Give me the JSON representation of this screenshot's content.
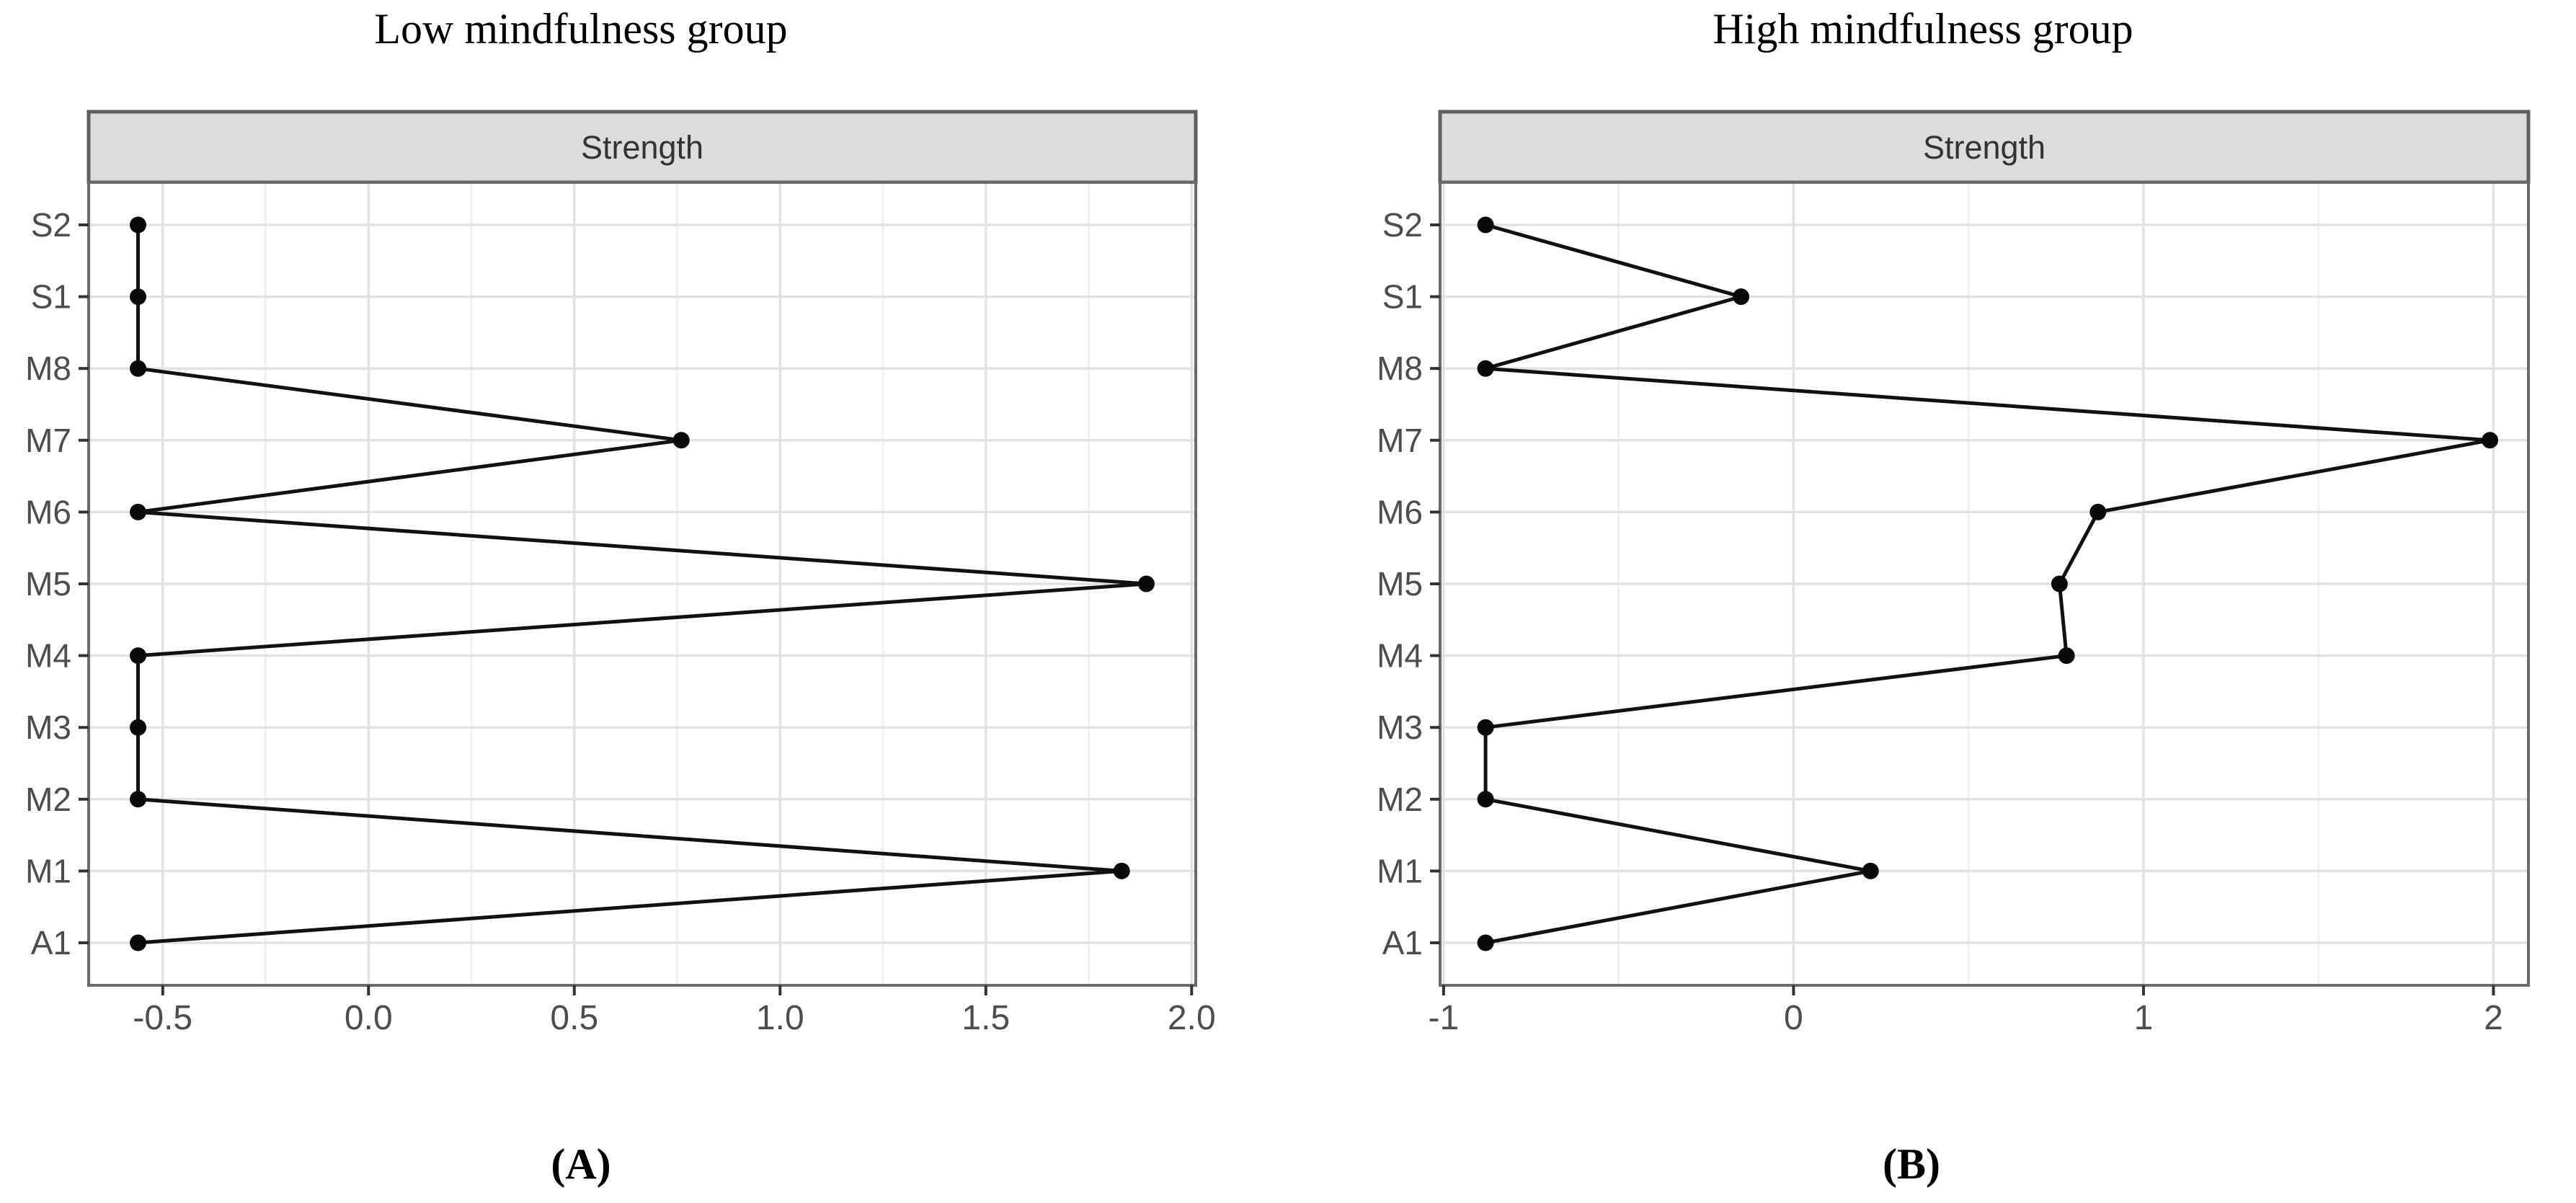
{
  "page": {
    "background": "#ffffff"
  },
  "colors": {
    "strip_fill": "#dcdcdc",
    "strip_border": "#5f5f5f",
    "panel_fill": "#ffffff",
    "panel_border": "#6a6a6a",
    "grid_major": "#e2e2e2",
    "grid_minor": "#f0f0f0",
    "axis_text": "#4d4d4d",
    "strip_text": "#333333",
    "tick_mark": "#333333",
    "data_line": "#111111",
    "data_point": "#0a0a0a"
  },
  "chart_data": [
    {
      "id": "A",
      "type": "line",
      "orientation": "horizontal-categorical",
      "title": "Low mindfulness group",
      "caption": "(A)",
      "facet_label": "Strength",
      "xlabel": "",
      "ylabel": "",
      "legend": "none",
      "grid": true,
      "categories_top_to_bottom": [
        "S2",
        "S1",
        "M8",
        "M7",
        "M6",
        "M5",
        "M4",
        "M3",
        "M2",
        "M1",
        "A1"
      ],
      "values": [
        -0.56,
        -0.56,
        -0.56,
        0.76,
        -0.56,
        1.89,
        -0.56,
        -0.56,
        -0.56,
        1.83,
        -0.56
      ],
      "x_domain": [
        -0.68,
        2.01
      ],
      "x_ticks": [
        -0.5,
        0,
        0.5,
        1,
        1.5,
        2
      ],
      "x_tick_labels": [
        "-0.5",
        "0.0",
        "0.5",
        "1.0",
        "1.5",
        "2.0"
      ],
      "x_minor_ticks": [
        -0.25,
        0.25,
        0.75,
        1.25,
        1.75
      ]
    },
    {
      "id": "B",
      "type": "line",
      "orientation": "horizontal-categorical",
      "title": "High mindfulness group",
      "caption": "(B)",
      "facet_label": "Strength",
      "xlabel": "",
      "ylabel": "",
      "legend": "none",
      "grid": true,
      "categories_top_to_bottom": [
        "S2",
        "S1",
        "M8",
        "M7",
        "M6",
        "M5",
        "M4",
        "M3",
        "M2",
        "M1",
        "A1"
      ],
      "values": [
        -0.88,
        -0.15,
        -0.88,
        1.99,
        0.87,
        0.76,
        0.78,
        -0.88,
        -0.88,
        0.22,
        -0.88
      ],
      "x_domain": [
        -1.01,
        2.1
      ],
      "x_ticks": [
        -1,
        0,
        1,
        2
      ],
      "x_tick_labels": [
        "-1",
        "0",
        "1",
        "2"
      ],
      "x_minor_ticks": [
        -0.5,
        0.5,
        1.5
      ]
    }
  ]
}
